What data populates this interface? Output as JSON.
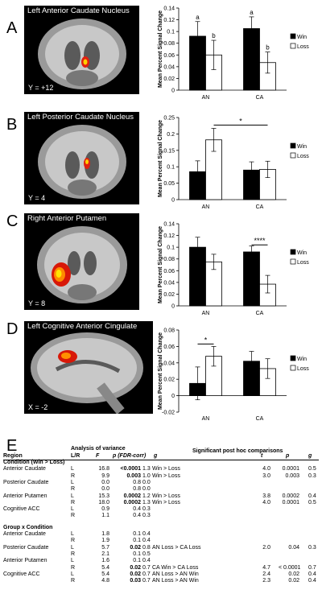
{
  "panels": [
    {
      "letter": "A",
      "region_title": "Left Anterior Caudate Nucleus",
      "coord": "Y = +12"
    },
    {
      "letter": "B",
      "region_title": "Left Posterior Caudate Nucleus",
      "coord": "Y = 4"
    },
    {
      "letter": "C",
      "region_title": "Right Anterior Putamen",
      "coord": "Y = 8"
    },
    {
      "letter": "D",
      "region_title": "Left Cognitive Anterior Cingulate",
      "coord": "X = -2"
    }
  ],
  "colors": {
    "win": "#000000",
    "loss": "#ffffff"
  },
  "chart_data": [
    {
      "type": "bar",
      "categories": [
        "AN",
        "CA"
      ],
      "ylabel": "Mean Percent Signal Change",
      "ylim": [
        0,
        0.14
      ],
      "ticks": [
        "0",
        "0.02",
        "0.04",
        "0.06",
        "0.08",
        "0.1",
        "0.12",
        "0.14"
      ],
      "yticks": [
        0,
        0.02,
        0.04,
        0.06,
        0.08,
        0.1,
        0.12,
        0.14
      ],
      "legend": "right",
      "series": [
        {
          "name": "Win",
          "values": [
            0.092,
            0.105
          ],
          "errors": [
            0.025,
            0.02
          ]
        },
        {
          "name": "Loss",
          "values": [
            0.06,
            0.047
          ],
          "errors": [
            0.025,
            0.018
          ]
        }
      ],
      "annotations": [
        {
          "text": "a",
          "cat": 0,
          "series": 0
        },
        {
          "text": "b",
          "cat": 0,
          "series": 1
        },
        {
          "text": "a",
          "cat": 1,
          "series": 0
        },
        {
          "text": "b",
          "cat": 1,
          "series": 1
        }
      ]
    },
    {
      "type": "bar",
      "categories": [
        "AN",
        "CA"
      ],
      "ylabel": "Mean Percent Signal Change",
      "ylim": [
        0,
        0.25
      ],
      "ticks": [
        "0",
        "0.05",
        "0.1",
        "0.15",
        "0.2",
        "0.25"
      ],
      "yticks": [
        0,
        0.05,
        0.1,
        0.15,
        0.2,
        0.25
      ],
      "legend": "right",
      "series": [
        {
          "name": "Win",
          "values": [
            0.085,
            0.09
          ],
          "errors": [
            0.033,
            0.025
          ]
        },
        {
          "name": "Loss",
          "values": [
            0.182,
            0.092
          ],
          "errors": [
            0.035,
            0.025
          ]
        }
      ],
      "sigline": {
        "text": "*",
        "y": 0.227,
        "from": [
          0,
          1
        ],
        "to": [
          1,
          1
        ]
      }
    },
    {
      "type": "bar",
      "categories": [
        "AN",
        "CA"
      ],
      "ylabel": "Mean Percent Signal Change",
      "ylim": [
        0,
        0.14
      ],
      "ticks": [
        "0",
        "0.02",
        "0.04",
        "0.06",
        "0.08",
        "0.1",
        "0.12",
        "0.14"
      ],
      "yticks": [
        0,
        0.02,
        0.04,
        0.06,
        0.08,
        0.1,
        0.12,
        0.14
      ],
      "legend": "right",
      "series": [
        {
          "name": "Win",
          "values": [
            0.1,
            0.092
          ],
          "errors": [
            0.017,
            0.01
          ]
        },
        {
          "name": "Loss",
          "values": [
            0.075,
            0.037
          ],
          "errors": [
            0.013,
            0.015
          ]
        }
      ],
      "sigline": {
        "text": "****",
        "y": 0.104,
        "from": [
          1,
          0
        ],
        "to": [
          1,
          1
        ]
      }
    },
    {
      "type": "bar",
      "categories": [
        "AN",
        "CA"
      ],
      "ylabel": "Mean Percent Signal Change",
      "ylim": [
        -0.02,
        0.08
      ],
      "ticks": [
        "-0.02",
        "0",
        "0.02",
        "0.04",
        "0.06",
        "0.08"
      ],
      "yticks": [
        -0.02,
        0,
        0.02,
        0.04,
        0.06,
        0.08
      ],
      "legend": "right",
      "series": [
        {
          "name": "Win",
          "values": [
            0.015,
            0.042
          ],
          "errors": [
            0.02,
            0.012
          ]
        },
        {
          "name": "Loss",
          "values": [
            0.048,
            0.033
          ],
          "errors": [
            0.012,
            0.012
          ]
        }
      ],
      "sigline": {
        "text": "*",
        "y": 0.063,
        "from": [
          0,
          0
        ],
        "to": [
          0,
          1
        ]
      }
    }
  ],
  "table": {
    "label": "E",
    "header_top": {
      "anova": "Analysis of variance",
      "posthoc": "Significant post hoc comparisons"
    },
    "header": {
      "region": "Region",
      "lr": "L/R",
      "f": "F",
      "p": "p (FDR-corr)",
      "g": "g",
      "t": "t",
      "p2": "p",
      "g2": "g"
    },
    "rows": [
      {
        "region": "Condition (Win > Loss)",
        "bold": true
      },
      {
        "region": "Anterior Caudate",
        "lr": "L",
        "f": "16.8",
        "p": "<0.0001",
        "pb": true,
        "g": "1.3",
        "comp": "Win > Loss",
        "t": "4.0",
        "p2": "0.0001",
        "g2": "0.5"
      },
      {
        "lr": "R",
        "f": "9.9",
        "p": "0.003",
        "pb": true,
        "g": "1.0",
        "comp": "Win > Loss",
        "t": "3.0",
        "p2": "0.003",
        "g2": "0.3"
      },
      {
        "region": "Posterior Caudate",
        "lr": "L",
        "f": "0.0",
        "p": "0.8",
        "g": "0.0"
      },
      {
        "lr": "R",
        "f": "0.0",
        "p": "0.8",
        "g": "0.0"
      },
      {
        "region": "Anterior Putamen",
        "lr": "L",
        "f": "15.3",
        "p": "0.0002",
        "pb": true,
        "g": "1.2",
        "comp": "Win > Loss",
        "t": "3.8",
        "p2": "0.0002",
        "g2": "0.4"
      },
      {
        "lr": "R",
        "f": "18.0",
        "p": "0.0002",
        "pb": true,
        "g": "1.3",
        "comp": "Win > Loss",
        "t": "4.0",
        "p2": "0.0001",
        "g2": "0.5"
      },
      {
        "region": "Cognitive ACC",
        "lr": "L",
        "f": "0.9",
        "p": "0.4",
        "g": "0.3"
      },
      {
        "lr": "R",
        "f": "1.1",
        "p": "0.4",
        "g": "0.3"
      },
      {
        "spacer": true
      },
      {
        "region": "Group x Condition",
        "bold": true
      },
      {
        "region": "Anterior Caudate",
        "lr": "L",
        "f": "1.8",
        "p": "0.1",
        "g": "0.4"
      },
      {
        "lr": "R",
        "f": "1.9",
        "p": "0.1",
        "g": "0.4"
      },
      {
        "region": "Posterior Caudate",
        "lr": "L",
        "f": "5.7",
        "p": "0.02",
        "pb": true,
        "g": "0.8",
        "comp": "AN Loss > CA Loss",
        "t": "2.0",
        "p2": "0.04",
        "g2": "0.3"
      },
      {
        "lr": "R",
        "f": "2.1",
        "p": "0.1",
        "g": "0.5"
      },
      {
        "region": "Anterior Putamen",
        "lr": "L",
        "f": "1.6",
        "p": "0.1",
        "g": "0.4"
      },
      {
        "lr": "R",
        "f": "5.4",
        "p": "0.02",
        "pb": true,
        "g": "0.7",
        "comp": "CA Win > CA Loss",
        "t": "4.7",
        "p2": "< 0.0001",
        "g2": "0.7"
      },
      {
        "region": "Cognitive ACC",
        "lr": "L",
        "f": "5.4",
        "p": "0.02",
        "pb": true,
        "g": "0.7",
        "comp": "AN Loss > AN Win",
        "t": "2.4",
        "p2": "0.02",
        "g2": "0.4"
      },
      {
        "lr": "R",
        "f": "4.8",
        "p": "0.03",
        "pb": true,
        "g": "0.7",
        "comp": "AN Loss > AN Win",
        "t": "2.3",
        "p2": "0.02",
        "g2": "0.4"
      }
    ]
  }
}
